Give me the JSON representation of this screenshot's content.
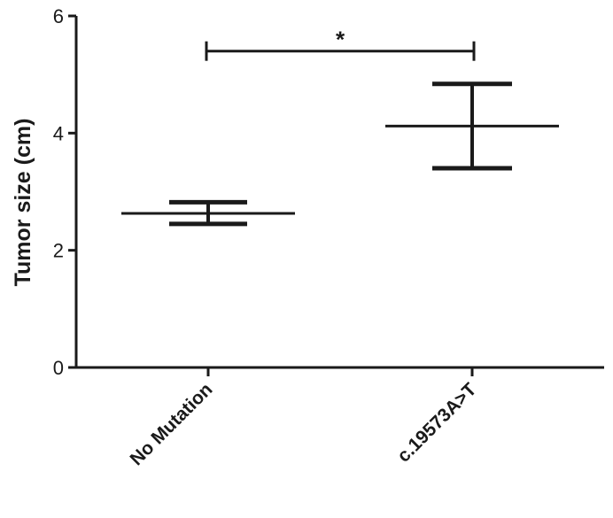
{
  "chart_data": {
    "type": "scatter",
    "title": "",
    "xlabel": "",
    "ylabel": "Tumor size (cm)",
    "ylim": [
      0,
      6
    ],
    "yticks": [
      0,
      2,
      4,
      6
    ],
    "ytick_labels": [
      "0",
      "2",
      "4",
      "6"
    ],
    "categories": [
      "No Mutation",
      "c.19573A>T"
    ],
    "series": [
      {
        "mean": [
          2.63,
          4.12
        ],
        "upper": [
          2.82,
          4.84
        ],
        "lower": [
          2.45,
          3.4
        ]
      }
    ],
    "annotations": [
      {
        "text": "*",
        "from_category": "No Mutation",
        "to_category": "c.19573A>T",
        "y": 5.4
      }
    ],
    "grid": false,
    "legend": "none",
    "colors": {
      "ink": "#1a1a1a",
      "background": "#ffffff"
    }
  }
}
